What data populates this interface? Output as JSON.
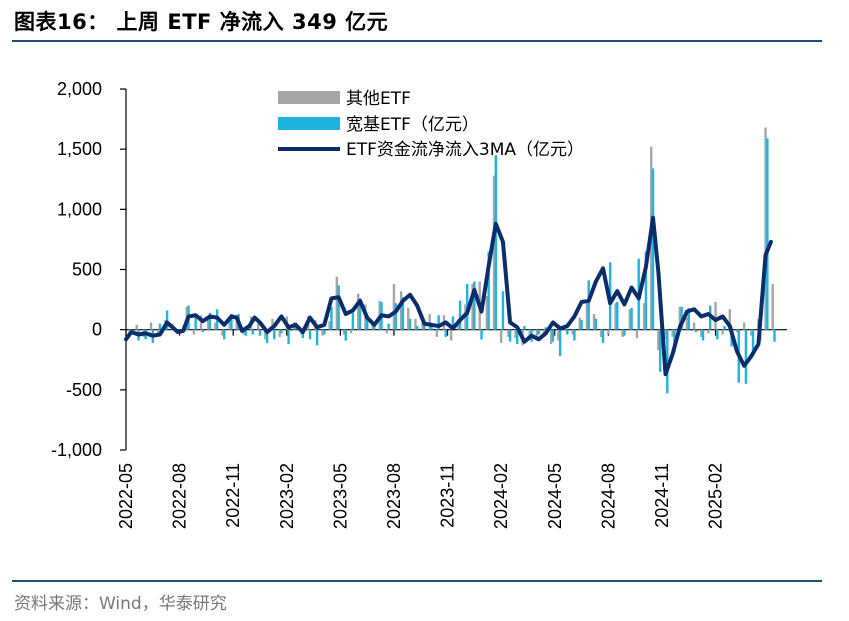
{
  "title": "图表16：  上周 ETF 净流入 349 亿元",
  "source": "资料来源：Wind，华泰研究",
  "chart_data": {
    "type": "bar",
    "title": "上周 ETF 净流入 349 亿元",
    "ylim": [
      -1000,
      2000
    ],
    "yticks": [
      2000,
      1500,
      1000,
      500,
      0,
      -500,
      -1000
    ],
    "ytick_labels": [
      "2,000",
      "1,500",
      "1,000",
      "500",
      "0",
      "-500",
      "-1,000"
    ],
    "xrange_months": [
      0,
      37
    ],
    "xticks": [
      {
        "label": "2022-05",
        "m": 0
      },
      {
        "label": "2022-08",
        "m": 3
      },
      {
        "label": "2022-11",
        "m": 6
      },
      {
        "label": "2023-02",
        "m": 9
      },
      {
        "label": "2023-05",
        "m": 12
      },
      {
        "label": "2023-08",
        "m": 15
      },
      {
        "label": "2023-11",
        "m": 18
      },
      {
        "label": "2024-02",
        "m": 21
      },
      {
        "label": "2024-05",
        "m": 24
      },
      {
        "label": "2024-08",
        "m": 27
      },
      {
        "label": "2024-11",
        "m": 30
      },
      {
        "label": "2025-02",
        "m": 33
      }
    ],
    "legend": [
      "其他ETF",
      "宽基ETF（亿元）",
      "ETF资金流净流入3MA（亿元）"
    ],
    "colors": {
      "other": "#a6a6a6",
      "broad": "#1fb3e0",
      "ma": "#0b2d6b",
      "axis": "#000000"
    },
    "series": [
      {
        "name": "其他ETF",
        "points": [
          [
            0.2,
            -50
          ],
          [
            0.6,
            40
          ],
          [
            1.0,
            -60
          ],
          [
            1.4,
            60
          ],
          [
            1.8,
            -40
          ],
          [
            2.2,
            80
          ],
          [
            2.6,
            50
          ],
          [
            3.0,
            -30
          ],
          [
            3.4,
            190
          ],
          [
            3.8,
            -40
          ],
          [
            4.2,
            120
          ],
          [
            4.6,
            80
          ],
          [
            5.0,
            60
          ],
          [
            5.4,
            -50
          ],
          [
            5.8,
            100
          ],
          [
            6.2,
            120
          ],
          [
            6.6,
            -40
          ],
          [
            7.0,
            110
          ],
          [
            7.4,
            60
          ],
          [
            7.8,
            -80
          ],
          [
            8.2,
            90
          ],
          [
            8.6,
            -60
          ],
          [
            9.0,
            110
          ],
          [
            9.4,
            60
          ],
          [
            9.8,
            -40
          ],
          [
            10.2,
            110
          ],
          [
            10.6,
            80
          ],
          [
            11.0,
            -50
          ],
          [
            11.4,
            70
          ],
          [
            11.8,
            440
          ],
          [
            12.2,
            -40
          ],
          [
            12.6,
            -30
          ],
          [
            13.0,
            300
          ],
          [
            13.4,
            210
          ],
          [
            13.8,
            60
          ],
          [
            14.2,
            240
          ],
          [
            14.6,
            -30
          ],
          [
            15.0,
            380
          ],
          [
            15.4,
            320
          ],
          [
            15.8,
            180
          ],
          [
            16.2,
            90
          ],
          [
            16.6,
            60
          ],
          [
            17.0,
            130
          ],
          [
            17.4,
            -60
          ],
          [
            17.8,
            120
          ],
          [
            18.2,
            -90
          ],
          [
            18.6,
            60
          ],
          [
            19.0,
            210
          ],
          [
            19.4,
            380
          ],
          [
            19.8,
            400
          ],
          [
            20.2,
            280
          ],
          [
            20.6,
            1280
          ],
          [
            21.0,
            -110
          ],
          [
            21.4,
            -60
          ],
          [
            21.8,
            -70
          ],
          [
            22.2,
            -130
          ],
          [
            22.6,
            -80
          ],
          [
            23.0,
            -90
          ],
          [
            23.4,
            -60
          ],
          [
            23.8,
            -120
          ],
          [
            24.2,
            -90
          ],
          [
            24.6,
            40
          ],
          [
            25.0,
            -40
          ],
          [
            25.4,
            100
          ],
          [
            25.8,
            230
          ],
          [
            26.2,
            130
          ],
          [
            26.6,
            -60
          ],
          [
            27.0,
            -40
          ],
          [
            27.4,
            220
          ],
          [
            27.8,
            -60
          ],
          [
            28.2,
            170
          ],
          [
            28.6,
            -70
          ],
          [
            29.0,
            220
          ],
          [
            29.4,
            1520
          ],
          [
            29.8,
            -170
          ],
          [
            30.2,
            -80
          ],
          [
            30.6,
            -60
          ],
          [
            31.0,
            190
          ],
          [
            31.4,
            100
          ],
          [
            31.8,
            60
          ],
          [
            32.2,
            -60
          ],
          [
            32.6,
            -30
          ],
          [
            33.0,
            230
          ],
          [
            33.4,
            -40
          ],
          [
            33.8,
            170
          ],
          [
            34.2,
            -20
          ],
          [
            34.6,
            60
          ],
          [
            35.0,
            -50
          ],
          [
            35.4,
            90
          ],
          [
            35.8,
            1680
          ],
          [
            36.2,
            380
          ]
        ]
      },
      {
        "name": "宽基ETF（亿元）",
        "points": [
          [
            0.3,
            -40
          ],
          [
            0.7,
            -90
          ],
          [
            1.1,
            -80
          ],
          [
            1.5,
            -110
          ],
          [
            1.9,
            50
          ],
          [
            2.3,
            160
          ],
          [
            2.7,
            20
          ],
          [
            3.1,
            -10
          ],
          [
            3.5,
            200
          ],
          [
            3.9,
            110
          ],
          [
            4.3,
            -20
          ],
          [
            4.7,
            140
          ],
          [
            5.1,
            170
          ],
          [
            5.5,
            -80
          ],
          [
            5.9,
            130
          ],
          [
            6.3,
            130
          ],
          [
            6.7,
            -50
          ],
          [
            7.1,
            -40
          ],
          [
            7.5,
            -50
          ],
          [
            7.9,
            -110
          ],
          [
            8.3,
            -80
          ],
          [
            8.7,
            -30
          ],
          [
            9.1,
            -120
          ],
          [
            9.5,
            60
          ],
          [
            9.9,
            -70
          ],
          [
            10.3,
            -80
          ],
          [
            10.7,
            -130
          ],
          [
            11.1,
            -40
          ],
          [
            11.5,
            190
          ],
          [
            11.9,
            370
          ],
          [
            12.3,
            -90
          ],
          [
            12.7,
            140
          ],
          [
            13.1,
            260
          ],
          [
            13.5,
            100
          ],
          [
            13.9,
            50
          ],
          [
            14.3,
            230
          ],
          [
            14.7,
            50
          ],
          [
            15.1,
            220
          ],
          [
            15.5,
            270
          ],
          [
            15.9,
            90
          ],
          [
            16.3,
            30
          ],
          [
            16.7,
            40
          ],
          [
            17.1,
            30
          ],
          [
            17.5,
            120
          ],
          [
            17.9,
            -60
          ],
          [
            18.3,
            110
          ],
          [
            18.7,
            240
          ],
          [
            19.1,
            380
          ],
          [
            19.5,
            400
          ],
          [
            19.9,
            -80
          ],
          [
            20.3,
            650
          ],
          [
            20.7,
            1450
          ],
          [
            21.1,
            320
          ],
          [
            21.5,
            -100
          ],
          [
            21.9,
            -120
          ],
          [
            22.3,
            30
          ],
          [
            22.7,
            -100
          ],
          [
            23.1,
            -40
          ],
          [
            23.5,
            20
          ],
          [
            23.9,
            -100
          ],
          [
            24.3,
            -220
          ],
          [
            24.7,
            -40
          ],
          [
            25.1,
            -90
          ],
          [
            25.5,
            80
          ],
          [
            25.9,
            410
          ],
          [
            26.3,
            90
          ],
          [
            26.7,
            -110
          ],
          [
            27.1,
            560
          ],
          [
            27.5,
            230
          ],
          [
            27.9,
            -50
          ],
          [
            28.3,
            180
          ],
          [
            28.7,
            590
          ],
          [
            29.1,
            650
          ],
          [
            29.5,
            1340
          ],
          [
            29.9,
            -350
          ],
          [
            30.3,
            -530
          ],
          [
            30.7,
            -190
          ],
          [
            31.1,
            190
          ],
          [
            31.5,
            180
          ],
          [
            31.9,
            -20
          ],
          [
            32.3,
            -90
          ],
          [
            32.7,
            200
          ],
          [
            33.1,
            -80
          ],
          [
            33.5,
            30
          ],
          [
            33.9,
            -140
          ],
          [
            34.3,
            -440
          ],
          [
            34.7,
            -450
          ],
          [
            35.1,
            -220
          ],
          [
            35.5,
            -90
          ],
          [
            35.9,
            1590
          ],
          [
            36.3,
            -100
          ]
        ]
      },
      {
        "name": "ETF资金流净流入3MA（亿元）",
        "points": [
          [
            0.0,
            -80
          ],
          [
            0.3,
            -20
          ],
          [
            0.7,
            -40
          ],
          [
            1.1,
            -30
          ],
          [
            1.5,
            -50
          ],
          [
            1.9,
            -40
          ],
          [
            2.3,
            60
          ],
          [
            2.6,
            20
          ],
          [
            2.9,
            -20
          ],
          [
            3.2,
            -10
          ],
          [
            3.5,
            110
          ],
          [
            3.9,
            120
          ],
          [
            4.3,
            70
          ],
          [
            4.7,
            110
          ],
          [
            5.1,
            100
          ],
          [
            5.5,
            40
          ],
          [
            5.9,
            110
          ],
          [
            6.2,
            100
          ],
          [
            6.5,
            -10
          ],
          [
            6.9,
            30
          ],
          [
            7.2,
            100
          ],
          [
            7.5,
            60
          ],
          [
            7.9,
            -20
          ],
          [
            8.3,
            30
          ],
          [
            8.7,
            110
          ],
          [
            9.1,
            20
          ],
          [
            9.5,
            40
          ],
          [
            9.9,
            -20
          ],
          [
            10.3,
            100
          ],
          [
            10.7,
            20
          ],
          [
            11.1,
            40
          ],
          [
            11.5,
            260
          ],
          [
            11.9,
            270
          ],
          [
            12.3,
            130
          ],
          [
            12.7,
            160
          ],
          [
            13.1,
            240
          ],
          [
            13.5,
            100
          ],
          [
            13.9,
            40
          ],
          [
            14.3,
            120
          ],
          [
            14.7,
            110
          ],
          [
            15.1,
            150
          ],
          [
            15.5,
            240
          ],
          [
            15.9,
            290
          ],
          [
            16.3,
            200
          ],
          [
            16.7,
            50
          ],
          [
            17.1,
            40
          ],
          [
            17.5,
            30
          ],
          [
            17.9,
            60
          ],
          [
            18.3,
            10
          ],
          [
            18.7,
            80
          ],
          [
            19.1,
            140
          ],
          [
            19.5,
            330
          ],
          [
            19.9,
            150
          ],
          [
            20.3,
            530
          ],
          [
            20.7,
            880
          ],
          [
            21.1,
            730
          ],
          [
            21.5,
            60
          ],
          [
            21.9,
            20
          ],
          [
            22.3,
            -100
          ],
          [
            22.7,
            -50
          ],
          [
            23.1,
            -80
          ],
          [
            23.5,
            -30
          ],
          [
            23.9,
            60
          ],
          [
            24.3,
            10
          ],
          [
            24.7,
            30
          ],
          [
            25.1,
            110
          ],
          [
            25.5,
            230
          ],
          [
            25.9,
            240
          ],
          [
            26.3,
            400
          ],
          [
            26.7,
            510
          ],
          [
            27.1,
            220
          ],
          [
            27.5,
            320
          ],
          [
            27.9,
            210
          ],
          [
            28.3,
            350
          ],
          [
            28.7,
            260
          ],
          [
            29.1,
            520
          ],
          [
            29.5,
            930
          ],
          [
            29.8,
            480
          ],
          [
            30.2,
            -370
          ],
          [
            30.6,
            -200
          ],
          [
            31.0,
            20
          ],
          [
            31.4,
            150
          ],
          [
            31.8,
            170
          ],
          [
            32.2,
            110
          ],
          [
            32.6,
            130
          ],
          [
            33.0,
            80
          ],
          [
            33.4,
            110
          ],
          [
            33.8,
            30
          ],
          [
            34.2,
            -180
          ],
          [
            34.6,
            -300
          ],
          [
            35.0,
            -220
          ],
          [
            35.4,
            -120
          ],
          [
            35.8,
            620
          ],
          [
            36.1,
            730
          ]
        ]
      }
    ]
  }
}
